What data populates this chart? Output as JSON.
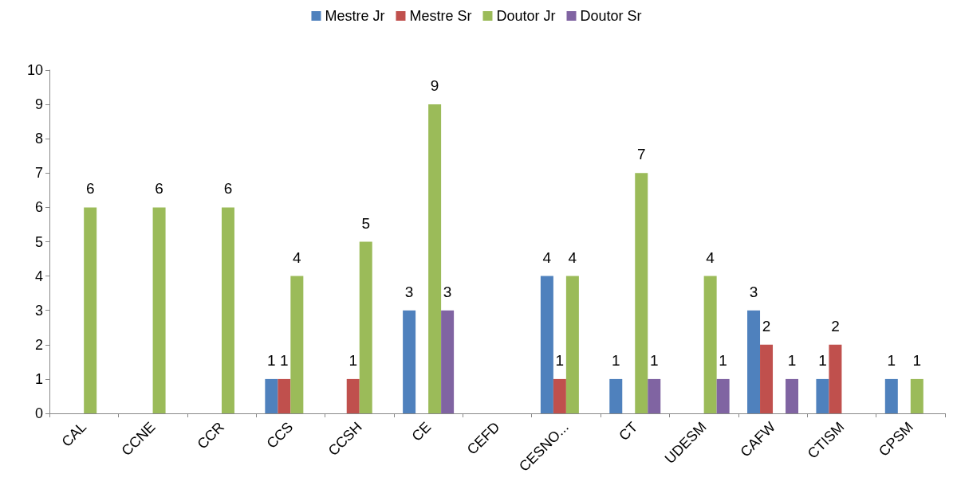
{
  "chart_data": {
    "type": "bar",
    "categories": [
      "CAL",
      "CCNE",
      "CCR",
      "CCS",
      "CCSH",
      "CE",
      "CEFD",
      "CESNO...",
      "CT",
      "UDESM",
      "CAFW",
      "CTISM",
      "CPSM"
    ],
    "series": [
      {
        "name": "Mestre Jr",
        "color": "#4f81bd",
        "values": [
          null,
          null,
          null,
          1,
          null,
          3,
          null,
          4,
          1,
          null,
          3,
          1,
          1
        ]
      },
      {
        "name": "Mestre Sr",
        "color": "#c0504d",
        "values": [
          null,
          null,
          null,
          1,
          1,
          null,
          null,
          1,
          null,
          null,
          2,
          2,
          null
        ]
      },
      {
        "name": "Doutor Jr",
        "color": "#9bbb59",
        "values": [
          6,
          6,
          6,
          4,
          5,
          9,
          null,
          4,
          7,
          4,
          null,
          null,
          1
        ]
      },
      {
        "name": "Doutor Sr",
        "color": "#8064a2",
        "values": [
          null,
          null,
          null,
          null,
          null,
          3,
          null,
          null,
          1,
          1,
          1,
          null,
          null
        ]
      }
    ],
    "ylim": [
      0,
      10
    ],
    "yticks": [
      0,
      1,
      2,
      3,
      4,
      5,
      6,
      7,
      8,
      9,
      10
    ],
    "grid": false,
    "legend": "top",
    "data_labels": true
  }
}
